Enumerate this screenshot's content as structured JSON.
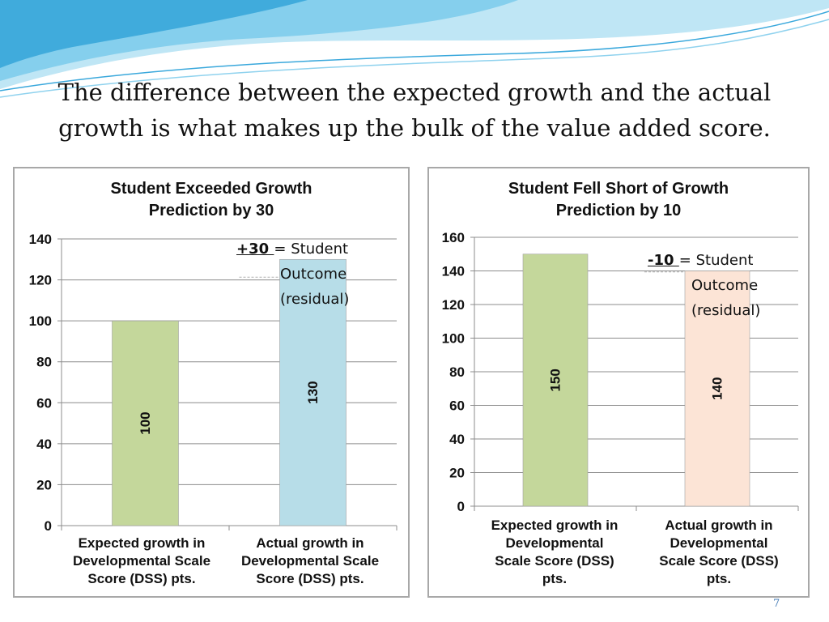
{
  "slide": {
    "headline_line1": "The difference between the expected growth and the actual",
    "headline_line2": "growth is what makes up the bulk of the value added score.",
    "slide_number": "7"
  },
  "colors": {
    "wave_dark": "#2a9fd6",
    "wave_light": "#b6e4f4",
    "bar_expected": "#c4d79b",
    "bar_actual_left": "#b7dde8",
    "bar_actual_right": "#fce4d6"
  },
  "chart_data": [
    {
      "type": "bar",
      "title": [
        "Student Exceeded Growth",
        "Prediction by 30"
      ],
      "categories": [
        [
          "Expected growth in",
          "Developmental Scale",
          "Score (DSS)  pts."
        ],
        [
          "Actual growth in",
          "Developmental Scale",
          "Score (DSS)  pts."
        ]
      ],
      "values": [
        100,
        130
      ],
      "data_labels": [
        "100",
        "130"
      ],
      "y_ticks": [
        "0",
        "20",
        "40",
        "60",
        "80",
        "100",
        "120",
        "140"
      ],
      "ylim": [
        0,
        140
      ],
      "y_step": 20,
      "grid": true,
      "legend": "none",
      "annotation": {
        "delta": "+30 ",
        "desc_1": "= Student",
        "desc_2": "Outcome",
        "desc_3": "(residual)"
      }
    },
    {
      "type": "bar",
      "title": [
        "Student Fell Short of Growth",
        "Prediction by 10"
      ],
      "categories": [
        [
          "Expected growth in",
          "Developmental",
          "Scale Score (DSS)",
          "pts."
        ],
        [
          "Actual growth in",
          "Developmental",
          "Scale Score (DSS)",
          "pts."
        ]
      ],
      "values": [
        150,
        140
      ],
      "data_labels": [
        "150",
        "140"
      ],
      "y_ticks": [
        "0",
        "20",
        "40",
        "60",
        "80",
        "100",
        "120",
        "140",
        "160"
      ],
      "ylim": [
        0,
        160
      ],
      "y_step": 20,
      "grid": true,
      "legend": "none",
      "annotation": {
        "delta": "-10 ",
        "desc_1": "= Student",
        "desc_2": "Outcome",
        "desc_3": "(residual)"
      }
    }
  ]
}
